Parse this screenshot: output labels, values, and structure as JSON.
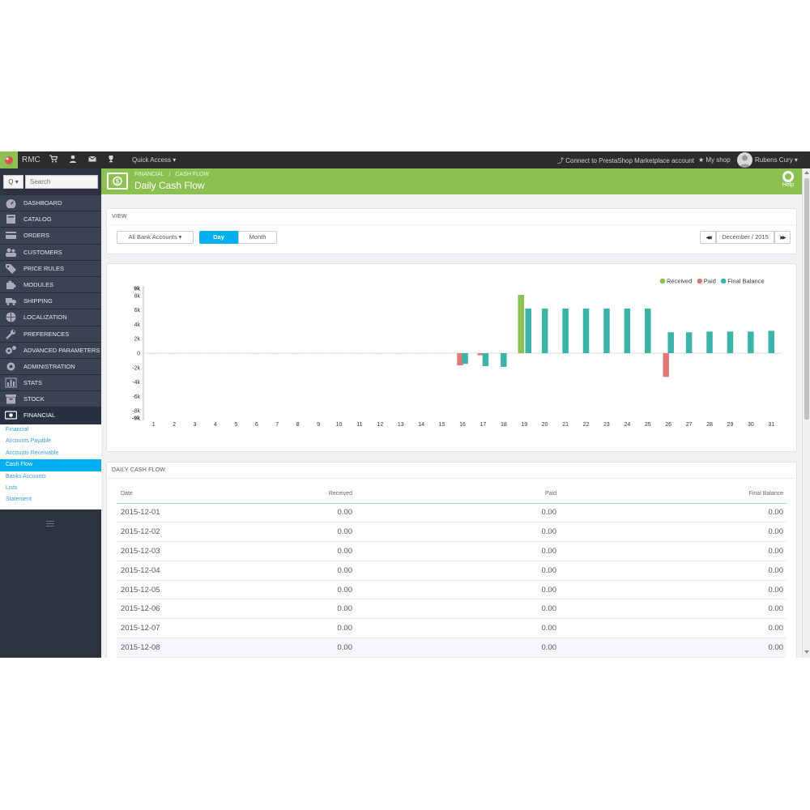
{
  "topbar": {
    "shop_name": "RMC",
    "quick_access": "Quick Access ▾",
    "connect": "Connect to PrestaShop Marketplace account",
    "my_shop": "My shop",
    "user": "Rubens Cury ▾",
    "icons": [
      "cart-icon",
      "user-icon",
      "mail-icon",
      "trophy-icon"
    ]
  },
  "sidebar": {
    "search_button": "Q ▾",
    "search_placeholder": "Search",
    "items": [
      {
        "label": "DASHBOARD",
        "icon": "dashboard-icon"
      },
      {
        "label": "CATALOG",
        "icon": "book-icon"
      },
      {
        "label": "ORDERS",
        "icon": "credit-card-icon"
      },
      {
        "label": "CUSTOMERS",
        "icon": "users-icon"
      },
      {
        "label": "PRICE RULES",
        "icon": "tags-icon"
      },
      {
        "label": "MODULES",
        "icon": "puzzle-icon"
      },
      {
        "label": "SHIPPING",
        "icon": "truck-icon"
      },
      {
        "label": "LOCALIZATION",
        "icon": "globe-icon"
      },
      {
        "label": "PREFERENCES",
        "icon": "wrench-icon"
      },
      {
        "label": "ADVANCED PARAMETERS",
        "icon": "cogs-icon"
      },
      {
        "label": "ADMINISTRATION",
        "icon": "gear-icon"
      },
      {
        "label": "STATS",
        "icon": "bar-chart-icon"
      },
      {
        "label": "STOCK",
        "icon": "archive-icon"
      },
      {
        "label": "FINANCIAL",
        "icon": "money-icon"
      }
    ],
    "active_item": "FINANCIAL",
    "sub_items": [
      "Financial",
      "Accounts Payable",
      "Accounts Receivable",
      "Cash Flow",
      "Banks Accounts",
      "Lists",
      "Statement"
    ],
    "active_sub_item": "Cash Flow"
  },
  "page": {
    "breadcrumb": [
      "FINANCIAL",
      "CASH FLOW"
    ],
    "title": "Daily Cash Flow",
    "help_label": "Help"
  },
  "view": {
    "heading": "VIEW",
    "account_select": "All Bank Accounts ▾",
    "toggle": [
      "Day",
      "Month"
    ],
    "active_toggle": "Day",
    "period": "December / 2015",
    "prev_label": "◀◀",
    "next_label": "▶▶"
  },
  "colors": {
    "green": "#8cc152",
    "received": "#8cc152",
    "paid": "#e07a77",
    "final_balance": "#3bb3a9",
    "accent_blue": "#00aff0",
    "sidebar_bg": "#2d3340"
  },
  "chart_data": {
    "type": "bar",
    "title": "",
    "xlabel": "",
    "ylabel": "",
    "ylim": [
      -9000,
      9000
    ],
    "yticks": [
      "9k",
      "8k",
      "6k",
      "4k",
      "2k",
      "0",
      "-2k",
      "-4k",
      "-6k",
      "-8k",
      "-9k"
    ],
    "ytick_values": [
      9000,
      8000,
      6000,
      4000,
      2000,
      0,
      -2000,
      -4000,
      -6000,
      -8000,
      -9000
    ],
    "legend_position": "top-right",
    "categories": [
      "1",
      "2",
      "3",
      "4",
      "5",
      "6",
      "7",
      "8",
      "9",
      "10",
      "11",
      "12",
      "13",
      "14",
      "15",
      "16",
      "17",
      "18",
      "19",
      "20",
      "21",
      "22",
      "23",
      "24",
      "25",
      "26",
      "27",
      "28",
      "29",
      "30",
      "31"
    ],
    "series": [
      {
        "name": "Received",
        "color": "#8cc152",
        "values": [
          0,
          0,
          0,
          0,
          0,
          0,
          0,
          0,
          0,
          0,
          0,
          0,
          0,
          0,
          0,
          0,
          0,
          0,
          8100,
          0,
          0,
          0,
          0,
          0,
          0,
          0,
          0,
          0,
          0,
          0,
          0
        ]
      },
      {
        "name": "Paid",
        "color": "#e07a77",
        "values": [
          0,
          0,
          0,
          0,
          0,
          0,
          0,
          0,
          0,
          0,
          0,
          0,
          0,
          0,
          0,
          -1700,
          -300,
          0,
          0,
          0,
          0,
          0,
          0,
          0,
          0,
          -3300,
          0,
          0,
          0,
          0,
          0
        ]
      },
      {
        "name": "Final Balance",
        "color": "#3bb3a9",
        "values": [
          0,
          0,
          0,
          0,
          0,
          0,
          0,
          0,
          0,
          0,
          0,
          0,
          0,
          0,
          0,
          -1500,
          -1800,
          -1900,
          6200,
          6200,
          6200,
          6200,
          6200,
          6200,
          6200,
          2900,
          2900,
          3000,
          3000,
          3000,
          3100
        ]
      }
    ]
  },
  "table": {
    "heading": "DAILY CASH FLOW",
    "columns": [
      "Date",
      "Received",
      "Paid",
      "Final Balance"
    ],
    "rows": [
      [
        "2015-12-01",
        "0.00",
        "0.00",
        "0.00"
      ],
      [
        "2015-12-02",
        "0.00",
        "0.00",
        "0.00"
      ],
      [
        "2015-12-03",
        "0.00",
        "0.00",
        "0.00"
      ],
      [
        "2015-12-04",
        "0.00",
        "0.00",
        "0.00"
      ],
      [
        "2015-12-05",
        "0.00",
        "0.00",
        "0.00"
      ],
      [
        "2015-12-06",
        "0.00",
        "0.00",
        "0.00"
      ],
      [
        "2015-12-07",
        "0.00",
        "0.00",
        "0.00"
      ],
      [
        "2015-12-08",
        "0.00",
        "0.00",
        "0.00"
      ]
    ]
  }
}
